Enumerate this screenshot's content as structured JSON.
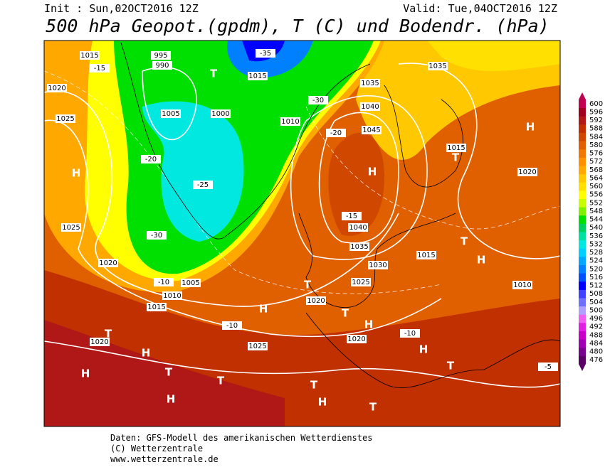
{
  "header": {
    "init": "Init : Sun,02OCT2016 12Z",
    "valid": "Valid: Tue,04OCT2016 12Z",
    "title": "500 hPa Geopot.(gpdm), T (C) und Bodendr. (hPa)"
  },
  "legend": {
    "items": [
      {
        "value": 476,
        "color": "#5a0064"
      },
      {
        "value": 480,
        "color": "#7a0090"
      },
      {
        "value": 484,
        "color": "#a000b4"
      },
      {
        "value": 488,
        "color": "#c800c8"
      },
      {
        "value": 492,
        "color": "#e020e0"
      },
      {
        "value": 496,
        "color": "#f060f0"
      },
      {
        "value": 500,
        "color": "#b0a0ff"
      },
      {
        "value": 504,
        "color": "#7070ff"
      },
      {
        "value": 508,
        "color": "#4040ff"
      },
      {
        "value": 512,
        "color": "#0000ff"
      },
      {
        "value": 516,
        "color": "#0050ff"
      },
      {
        "value": 520,
        "color": "#0080ff"
      },
      {
        "value": 524,
        "color": "#00a8ff"
      },
      {
        "value": 528,
        "color": "#00d0ff"
      },
      {
        "value": 532,
        "color": "#00e8e0"
      },
      {
        "value": 536,
        "color": "#00e0a0"
      },
      {
        "value": 540,
        "color": "#00d060"
      },
      {
        "value": 544,
        "color": "#00e000"
      },
      {
        "value": 548,
        "color": "#80f000"
      },
      {
        "value": 552,
        "color": "#c8ff00"
      },
      {
        "value": 556,
        "color": "#ffff00"
      },
      {
        "value": 560,
        "color": "#ffe000"
      },
      {
        "value": 564,
        "color": "#ffc800"
      },
      {
        "value": 568,
        "color": "#ffa800"
      },
      {
        "value": 572,
        "color": "#ff9000"
      },
      {
        "value": 576,
        "color": "#f07800"
      },
      {
        "value": 580,
        "color": "#e06000"
      },
      {
        "value": 584,
        "color": "#d04800"
      },
      {
        "value": 588,
        "color": "#c03000"
      },
      {
        "value": 592,
        "color": "#b01818"
      },
      {
        "value": 596,
        "color": "#a00020"
      },
      {
        "value": 600,
        "color": "#c00050"
      }
    ]
  },
  "map_labels": [
    "1015",
    "1020",
    "1025",
    "1025",
    "1020",
    "1015",
    "1020",
    "1005",
    "995",
    "990",
    "1000",
    "1005",
    "1010",
    "1015",
    "1010",
    "1035",
    "1040",
    "1045",
    "1040",
    "1035",
    "1030",
    "1025",
    "1020",
    "1025",
    "1015",
    "1020",
    "1015",
    "1010",
    "1035",
    "1020",
    "-15",
    "-20",
    "-25",
    "-30",
    "-35",
    "-30",
    "-20",
    "-15",
    "-10",
    "-10",
    "-10",
    "-5",
    "H",
    "T",
    "H",
    "T",
    "H",
    "H",
    "T",
    "H",
    "T",
    "T",
    "H",
    "T",
    "H",
    "T",
    "H",
    "T",
    "H",
    "T",
    "H",
    "T",
    "T",
    "H"
  ],
  "footer": {
    "source": "Daten: GFS-Modell des amerikanischen Wetterdienstes",
    "copyright": "(C) Wetterzentrale",
    "url": "www.wetterzentrale.de"
  }
}
